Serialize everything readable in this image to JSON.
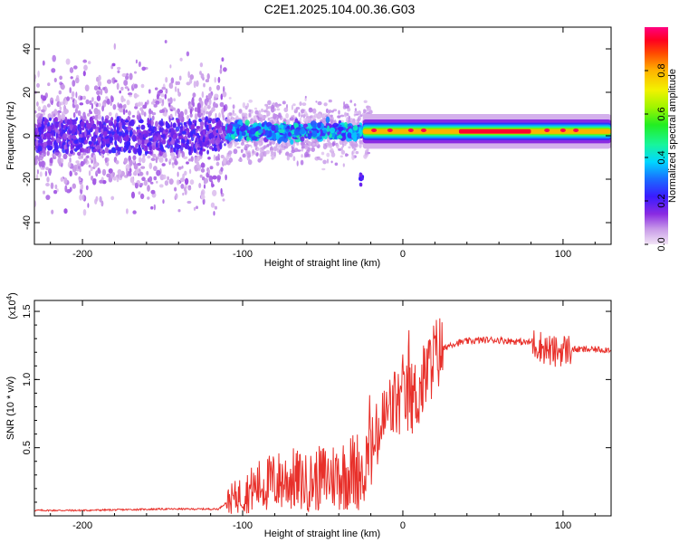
{
  "title": "C2E1.2025.104.00.36.G03",
  "chart_data": [
    {
      "type": "heatmap",
      "name": "spectrogram",
      "xlabel": "Height of straight line (km)",
      "ylabel": "Frequency (Hz)",
      "xlim": [
        -230,
        130
      ],
      "ylim": [
        -50,
        50
      ],
      "xticks": [
        -200,
        -100,
        0,
        100
      ],
      "yticks": [
        -40,
        -20,
        0,
        20,
        40
      ],
      "colorbar": {
        "label": "Normalized spectral amplitude",
        "range": [
          0,
          1
        ],
        "ticks": [
          0.0,
          0.2,
          0.4,
          0.6,
          0.8
        ],
        "tick_labels": [
          "0.0",
          "0.2",
          "0.4",
          "0.6",
          "0.8"
        ]
      },
      "regions": [
        {
          "x": [
            -230,
            -110
          ],
          "description": "scattered low amplitude noise, 0.0-0.3"
        },
        {
          "x": [
            -110,
            -25
          ],
          "freq_center": 2,
          "amplitude_peak": 0.45
        },
        {
          "x": [
            -25,
            130
          ],
          "freq_center": 2,
          "amplitude_peak": 1.0
        }
      ]
    },
    {
      "type": "line",
      "name": "snr",
      "xlabel": "Height of straight line (km)",
      "ylabel": "SNR (10 * v/v)",
      "multiplier": "(x10^4)",
      "multiplier_base": "(x10",
      "multiplier_exp": "4",
      "multiplier_close": ")",
      "xlim": [
        -230,
        130
      ],
      "ylim": [
        0,
        1.58
      ],
      "xticks": [
        -200,
        -100,
        0,
        100
      ],
      "yticks": [
        0.5,
        1.0,
        1.5
      ],
      "ytick_labels": [
        "0.5",
        "1.0",
        "1.5"
      ],
      "color": "#e8302a",
      "series": [
        {
          "name": "SNR",
          "x": [
            -230,
            -200,
            -150,
            -115,
            -108,
            -100,
            -90,
            -80,
            -70,
            -60,
            -50,
            -40,
            -30,
            -25,
            -20,
            -15,
            -10,
            -5,
            0,
            5,
            10,
            15,
            20,
            25,
            30,
            40,
            50,
            60,
            70,
            80,
            85,
            90,
            95,
            100,
            110,
            120,
            130
          ],
          "y": [
            0.04,
            0.04,
            0.05,
            0.05,
            0.12,
            0.16,
            0.22,
            0.25,
            0.27,
            0.24,
            0.28,
            0.3,
            0.33,
            0.35,
            0.45,
            0.6,
            0.75,
            0.82,
            0.84,
            0.86,
            0.9,
            1.05,
            1.18,
            1.22,
            1.26,
            1.28,
            1.29,
            1.29,
            1.28,
            1.27,
            1.25,
            1.22,
            1.2,
            1.22,
            1.22,
            1.22,
            1.22
          ]
        }
      ]
    }
  ]
}
